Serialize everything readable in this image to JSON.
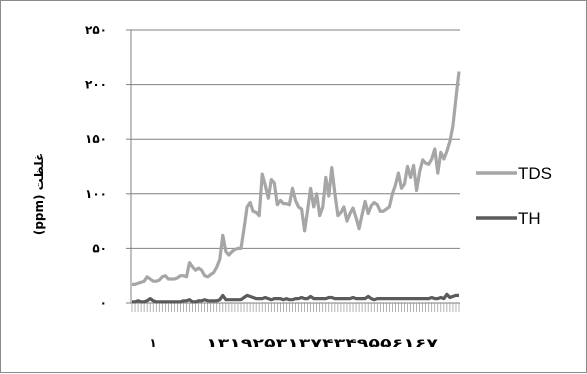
{
  "chart_data": {
    "type": "line",
    "title": "",
    "xlabel": "",
    "ylabel": "غلظت (ppm)",
    "ylim": [
      0,
      250
    ],
    "y_ticks": [
      "۰",
      "۵۰",
      "۱۰۰",
      "۱۵۰",
      "۲۰۰",
      "۲۵۰"
    ],
    "x_tick_labels": [
      "۱",
      "۱۳۱۹۲۵۳۱۳۷۴۳۴۹۵۵۶۱۶۷"
    ],
    "num_points": 109,
    "grid": "horizontal",
    "legend_position": "right",
    "series": [
      {
        "name": "TDS",
        "color": "#a6a6a6",
        "values": [
          17,
          17,
          18,
          19,
          20,
          24,
          22,
          20,
          20,
          21,
          24,
          25,
          22,
          22,
          22,
          23,
          25,
          25,
          24,
          37,
          33,
          30,
          32,
          30,
          25,
          24,
          26,
          28,
          33,
          40,
          62,
          47,
          44,
          47,
          49,
          50,
          50,
          68,
          88,
          92,
          84,
          83,
          80,
          118,
          108,
          96,
          113,
          110,
          90,
          94,
          91,
          91,
          90,
          105,
          94,
          88,
          86,
          66,
          85,
          105,
          88,
          100,
          80,
          88,
          115,
          98,
          124,
          100,
          80,
          83,
          88,
          75,
          82,
          87,
          78,
          68,
          81,
          93,
          82,
          89,
          92,
          90,
          84,
          84,
          86,
          88,
          100,
          108,
          119,
          105,
          109,
          125,
          115,
          126,
          103,
          120,
          131,
          128,
          127,
          132,
          141,
          119,
          138,
          132,
          139,
          148,
          162,
          188,
          212
        ]
      },
      {
        "name": "TH",
        "color": "#5b5b5b",
        "values": [
          1,
          1,
          2,
          1,
          1,
          2,
          4,
          2,
          1,
          1,
          1,
          1,
          1,
          1,
          1,
          1,
          1,
          2,
          2,
          3,
          1,
          1,
          2,
          2,
          3,
          2,
          2,
          2,
          2,
          3,
          7,
          3,
          3,
          3,
          3,
          3,
          3,
          5,
          7,
          6,
          5,
          4,
          4,
          4,
          5,
          4,
          3,
          4,
          4,
          4,
          3,
          4,
          3,
          3,
          4,
          4,
          5,
          4,
          4,
          6,
          4,
          4,
          4,
          4,
          4,
          5,
          5,
          4,
          4,
          4,
          4,
          4,
          4,
          5,
          4,
          4,
          4,
          4,
          6,
          4,
          3,
          4,
          4,
          4,
          4,
          4,
          4,
          4,
          4,
          4,
          4,
          4,
          4,
          4,
          4,
          4,
          4,
          4,
          4,
          5,
          4,
          4,
          5,
          4,
          8,
          5,
          6,
          7,
          7
        ]
      }
    ]
  }
}
